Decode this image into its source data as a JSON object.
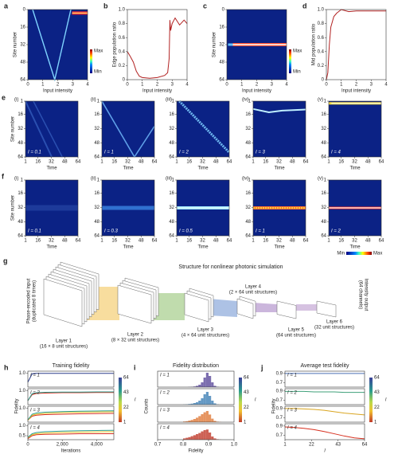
{
  "chart_data": [
    {
      "type": "heatmap",
      "panel": "a",
      "xlabel": "Input intensity",
      "ylabel": "Site number",
      "xlim": [
        0,
        4
      ],
      "xticks": [
        0,
        1,
        2,
        3,
        4
      ],
      "ylim": [
        64,
        0
      ],
      "yticks": [
        0,
        16,
        32,
        48,
        64
      ],
      "colorbar": [
        "Max",
        "Min"
      ]
    },
    {
      "type": "line",
      "panel": "b",
      "xlabel": "Input intensity",
      "ylabel": "Edge population ratio",
      "xlim": [
        0,
        4
      ],
      "xticks": [
        0,
        1,
        2,
        3,
        4
      ],
      "ylim": [
        0,
        1
      ],
      "yticks": [
        0,
        0.2,
        0.4,
        0.6,
        0.8,
        {
          "value": 1,
          "label": "1.0"
        }
      ],
      "x": [
        0,
        0.2,
        0.4,
        0.6,
        0.8,
        1.0,
        1.5,
        2,
        2.5,
        2.7,
        2.8,
        2.85,
        2.9,
        3,
        3.2,
        3.5,
        3.8,
        4
      ],
      "series": [
        {
          "color": "#b22222",
          "values": [
            0.4,
            0.33,
            0.25,
            0.12,
            0.05,
            0.03,
            0.02,
            0.03,
            0.06,
            0.1,
            0.3,
            0.85,
            0.7,
            0.8,
            0.88,
            0.78,
            0.85,
            0.8
          ]
        }
      ]
    },
    {
      "type": "heatmap",
      "panel": "c",
      "xlabel": "Input intensity",
      "ylabel": "Site number",
      "xlim": [
        0,
        4
      ],
      "xticks": [
        0,
        1,
        2,
        3,
        4
      ],
      "ylim": [
        64,
        0
      ],
      "yticks": [
        0,
        16,
        32,
        48,
        64
      ],
      "colorbar": [
        "Max",
        "Min"
      ]
    },
    {
      "type": "line",
      "panel": "d",
      "xlabel": "Input intensity",
      "ylabel": "Mid population ratio",
      "xlim": [
        0,
        4
      ],
      "xticks": [
        0,
        1,
        2,
        3,
        4
      ],
      "ylim": [
        0,
        1
      ],
      "yticks": [
        0,
        0.2,
        0.4,
        0.6,
        0.8,
        {
          "value": 1,
          "label": "1.0"
        }
      ],
      "x": [
        0,
        0.1,
        0.2,
        0.3,
        0.5,
        0.7,
        1,
        1.5,
        2,
        3,
        4
      ],
      "series": [
        {
          "color": "#b22222",
          "values": [
            0,
            0.1,
            0.5,
            0.75,
            0.9,
            0.95,
            1.0,
            0.97,
            0.98,
            0.98,
            0.98
          ]
        }
      ]
    },
    {
      "type": "heatmap",
      "panel": "e",
      "subpanel": "(i)",
      "annotation": "I = 0.1",
      "xlabel": "Time",
      "ylabel": "Site number",
      "xlim": [
        1,
        64
      ],
      "xticks": [
        1,
        16,
        32,
        48,
        64
      ],
      "ylim": [
        64,
        1
      ],
      "yticks": [
        1,
        16,
        32,
        48,
        64
      ]
    },
    {
      "type": "heatmap",
      "subpanel": "(ii)",
      "annotation": "I = 1",
      "xlabel": "Time",
      "xlim": [
        1,
        64
      ],
      "xticks": [
        1,
        16,
        32,
        48,
        64
      ],
      "ylim": [
        64,
        1
      ],
      "yticks": [
        1,
        16,
        32,
        48,
        64
      ]
    },
    {
      "type": "heatmap",
      "subpanel": "(iii)",
      "annotation": "I = 2",
      "xlabel": "Time",
      "xlim": [
        1,
        64
      ],
      "xticks": [
        1,
        16,
        32,
        48,
        64
      ],
      "ylim": [
        64,
        1
      ],
      "yticks": [
        1,
        16,
        32,
        48,
        64
      ]
    },
    {
      "type": "heatmap",
      "subpanel": "(iv)",
      "annotation": "I = 3",
      "xlabel": "Time",
      "xlim": [
        1,
        64
      ],
      "xticks": [
        1,
        16,
        32,
        48,
        64
      ],
      "ylim": [
        64,
        1
      ],
      "yticks": [
        1,
        16,
        32,
        48,
        64
      ]
    },
    {
      "type": "heatmap",
      "subpanel": "(v)",
      "annotation": "I = 4",
      "xlabel": "Time",
      "xlim": [
        1,
        64
      ],
      "xticks": [
        1,
        16,
        32,
        48,
        64
      ],
      "ylim": [
        64,
        1
      ],
      "yticks": [
        1,
        16,
        32,
        48,
        64
      ]
    },
    {
      "type": "heatmap",
      "panel": "f",
      "subpanel": "(i)",
      "annotation": "I = 0.1",
      "xlabel": "Time",
      "ylabel": "Site number",
      "xlim": [
        1,
        64
      ],
      "xticks": [
        1,
        16,
        32,
        48,
        64
      ],
      "ylim": [
        64,
        1
      ],
      "yticks": [
        1,
        16,
        32,
        48,
        64
      ]
    },
    {
      "type": "heatmap",
      "subpanel": "(ii)",
      "annotation": "I = 0.3",
      "xlabel": "Time",
      "xlim": [
        1,
        64
      ],
      "xticks": [
        1,
        16,
        32,
        48,
        64
      ],
      "ylim": [
        64,
        1
      ],
      "yticks": [
        1,
        16,
        32,
        48,
        64
      ]
    },
    {
      "type": "heatmap",
      "subpanel": "(iii)",
      "annotation": "I = 0.5",
      "xlabel": "Time",
      "xlim": [
        1,
        64
      ],
      "xticks": [
        1,
        16,
        32,
        48,
        64
      ],
      "ylim": [
        64,
        1
      ],
      "yticks": [
        1,
        16,
        32,
        48,
        64
      ]
    },
    {
      "type": "heatmap",
      "subpanel": "(iv)",
      "annotation": "I = 1",
      "xlabel": "Time",
      "xlim": [
        1,
        64
      ],
      "xticks": [
        1,
        16,
        32,
        48,
        64
      ],
      "ylim": [
        64,
        1
      ],
      "yticks": [
        1,
        16,
        32,
        48,
        64
      ]
    },
    {
      "type": "heatmap",
      "subpanel": "(v)",
      "annotation": "I = 2",
      "xlabel": "Time",
      "xlim": [
        1,
        64
      ],
      "xticks": [
        1,
        16,
        32,
        48,
        64
      ],
      "ylim": [
        64,
        1
      ],
      "yticks": [
        1,
        16,
        32,
        48,
        64
      ],
      "colorbar": [
        "Min",
        "Max"
      ]
    },
    {
      "type": "line",
      "panel": "h",
      "title": "Training fidelity",
      "ylabel": "Fidelity",
      "annotation": "I = 1",
      "xlim": [
        0,
        5000
      ],
      "ylim": [
        0.3,
        1.1
      ],
      "yticks": [
        {
          "value": 1,
          "label": "1.0"
        }
      ],
      "x": [
        0,
        250,
        500,
        1000,
        2000,
        3000,
        4000,
        5000
      ],
      "series": [
        {
          "color": "#2c3e8c",
          "values": [
            0.55,
            0.97,
            0.99,
            0.99,
            0.99,
            0.99,
            0.99,
            0.99
          ]
        }
      ],
      "colorbar": {
        "ticks": [
          64,
          43,
          22,
          1
        ],
        "label": "l"
      }
    },
    {
      "type": "line",
      "annotation": "I = 2",
      "xlim": [
        0,
        5000
      ],
      "ylim": [
        0.3,
        1.1
      ],
      "yticks": [
        {
          "value": 1,
          "label": "1.0"
        }
      ],
      "x": [
        0,
        250,
        500,
        1000,
        2000,
        3000,
        4000,
        5000
      ],
      "series": [
        {
          "color": "#d7301f",
          "values": [
            0.5,
            0.8,
            0.86,
            0.88,
            0.9,
            0.9,
            0.91,
            0.91
          ]
        },
        {
          "color": "#2a9d8f",
          "values": [
            0.5,
            0.85,
            0.9,
            0.92,
            0.93,
            0.93,
            0.94,
            0.94
          ]
        }
      ]
    },
    {
      "type": "line",
      "annotation": "I = 3",
      "xlim": [
        0,
        5000
      ],
      "ylim": [
        0.3,
        1.1
      ],
      "yticks": [
        {
          "value": 1,
          "label": "1.0"
        }
      ],
      "x": [
        0,
        250,
        500,
        1000,
        2000,
        3000,
        4000,
        5000
      ],
      "series": [
        {
          "color": "#d7301f",
          "values": [
            0.4,
            0.6,
            0.65,
            0.68,
            0.7,
            0.72,
            0.73,
            0.74
          ]
        },
        {
          "color": "#e6c229",
          "values": [
            0.4,
            0.65,
            0.7,
            0.74,
            0.78,
            0.8,
            0.81,
            0.82
          ]
        },
        {
          "color": "#2a9d8f",
          "values": [
            0.42,
            0.7,
            0.76,
            0.8,
            0.83,
            0.85,
            0.86,
            0.87
          ]
        }
      ]
    },
    {
      "type": "line",
      "annotation": "I = 4",
      "xlabel": "Iterations",
      "xlim": [
        0,
        5000
      ],
      "xticks": [
        0,
        {
          "value": 2000,
          "label": "2,000"
        },
        {
          "value": 4000,
          "label": "4,000"
        }
      ],
      "ylim": [
        0.3,
        1.1
      ],
      "yticks": [
        {
          "value": 1,
          "label": "1.0"
        },
        0.5
      ],
      "x": [
        0,
        250,
        500,
        1000,
        2000,
        3000,
        4000,
        5000
      ],
      "series": [
        {
          "color": "#d7301f",
          "values": [
            0.35,
            0.5,
            0.55,
            0.57,
            0.58,
            0.6,
            0.6,
            0.6
          ]
        },
        {
          "color": "#e6c229",
          "values": [
            0.4,
            0.55,
            0.6,
            0.63,
            0.66,
            0.68,
            0.69,
            0.7
          ]
        },
        {
          "color": "#2a9d8f",
          "values": [
            0.42,
            0.6,
            0.66,
            0.7,
            0.73,
            0.75,
            0.76,
            0.77
          ]
        }
      ]
    },
    {
      "type": "histogram",
      "panel": "i",
      "title": "Fidelity distribution",
      "ylabel": "Counts",
      "annotation": "I = 1",
      "xlim": [
        0.7,
        1.0
      ],
      "ylim": [
        0,
        100
      ],
      "bins": [
        0.8,
        0.81,
        0.82,
        0.83,
        0.84,
        0.85,
        0.86,
        0.87,
        0.88,
        0.89,
        0.9,
        0.91,
        0.92,
        0.93,
        0.94,
        0.95,
        0.96
      ],
      "counts": [
        0,
        0,
        1,
        2,
        4,
        8,
        15,
        30,
        60,
        90,
        70,
        30,
        8,
        2,
        0,
        0
      ],
      "color": "#5b4a9b",
      "colorbar": {
        "ticks": [
          64,
          43,
          22,
          1
        ],
        "label": "l"
      }
    },
    {
      "type": "histogram",
      "annotation": "I = 2",
      "xlim": [
        0.7,
        1.0
      ],
      "ylim": [
        0,
        100
      ],
      "bins": [
        0.8,
        0.81,
        0.82,
        0.83,
        0.84,
        0.85,
        0.86,
        0.87,
        0.88,
        0.89,
        0.9,
        0.91,
        0.92,
        0.93,
        0.94,
        0.95,
        0.96
      ],
      "counts": [
        1,
        2,
        4,
        6,
        10,
        15,
        25,
        40,
        65,
        80,
        55,
        25,
        8,
        2,
        0,
        0
      ],
      "color": "#3f7fb5"
    },
    {
      "type": "histogram",
      "annotation": "I = 3",
      "xlim": [
        0.7,
        1.0
      ],
      "ylim": [
        0,
        100
      ],
      "bins": [
        0.8,
        0.81,
        0.82,
        0.83,
        0.84,
        0.85,
        0.86,
        0.87,
        0.88,
        0.89,
        0.9,
        0.91,
        0.92,
        0.93,
        0.94,
        0.95,
        0.96
      ],
      "counts": [
        4,
        6,
        10,
        14,
        20,
        28,
        38,
        50,
        62,
        70,
        48,
        22,
        8,
        3,
        1,
        0
      ],
      "color": "#e07b39"
    },
    {
      "type": "histogram",
      "annotation": "I = 4",
      "xlabel": "Fidelity",
      "xlim": [
        0.7,
        1.0
      ],
      "xticks": [
        0.7,
        0.8,
        0.9,
        {
          "value": 1,
          "label": "1.0"
        }
      ],
      "ylim": [
        0,
        100
      ],
      "bins": [
        0.8,
        0.81,
        0.82,
        0.83,
        0.84,
        0.85,
        0.86,
        0.87,
        0.88,
        0.89,
        0.9,
        0.91,
        0.92,
        0.93,
        0.94,
        0.95,
        0.96
      ],
      "counts": [
        8,
        12,
        16,
        22,
        28,
        35,
        42,
        52,
        60,
        64,
        45,
        20,
        8,
        3,
        1,
        0
      ],
      "color": "#c0392b"
    },
    {
      "type": "line",
      "panel": "j",
      "title": "Average test fidelity",
      "ylabel": "Fidelity",
      "annotation": "I = 1",
      "xlim": [
        1,
        64
      ],
      "ylim": [
        0.6,
        0.95
      ],
      "yticks": [
        0.7,
        0.9
      ],
      "x": [
        1,
        8,
        16,
        24,
        32,
        40,
        48,
        56,
        64
      ],
      "series": [
        {
          "color": "#4a6fb5",
          "values": [
            0.9,
            0.9,
            0.9,
            0.9,
            0.9,
            0.9,
            0.9,
            0.9,
            0.9
          ]
        }
      ],
      "colorbar": {
        "ticks": [
          64,
          43,
          22,
          1
        ],
        "label": "l"
      }
    },
    {
      "type": "line",
      "annotation": "I = 2",
      "xlim": [
        1,
        64
      ],
      "ylim": [
        0.6,
        0.95
      ],
      "yticks": [
        0.7,
        0.9
      ],
      "x": [
        1,
        8,
        16,
        24,
        32,
        40,
        48,
        56,
        64
      ],
      "series": [
        {
          "color": "#3fa07a",
          "values": [
            0.89,
            0.89,
            0.89,
            0.88,
            0.88,
            0.88,
            0.87,
            0.87,
            0.87
          ]
        }
      ]
    },
    {
      "type": "line",
      "annotation": "I = 3",
      "xlim": [
        1,
        64
      ],
      "ylim": [
        0.6,
        0.95
      ],
      "yticks": [
        0.7,
        0.9
      ],
      "x": [
        1,
        8,
        16,
        24,
        32,
        40,
        48,
        56,
        64
      ],
      "series": [
        {
          "color": "#d9a520",
          "values": [
            0.9,
            0.9,
            0.89,
            0.88,
            0.86,
            0.83,
            0.8,
            0.78,
            0.76
          ]
        }
      ]
    },
    {
      "type": "line",
      "annotation": "I = 4",
      "xlabel": "l",
      "xlim": [
        1,
        64
      ],
      "xticks": [
        1,
        22,
        43,
        64
      ],
      "ylim": [
        0.6,
        0.95
      ],
      "yticks": [
        0.7,
        0.9
      ],
      "x": [
        1,
        8,
        16,
        24,
        32,
        40,
        48,
        56,
        64
      ],
      "series": [
        {
          "color": "#d7301f",
          "values": [
            0.88,
            0.87,
            0.85,
            0.82,
            0.78,
            0.73,
            0.68,
            0.64,
            0.62
          ]
        }
      ]
    }
  ],
  "diagram": {
    "panel": "g",
    "title": "Structure for nonlinear photonic simulation",
    "input": [
      "Phase-encoded input",
      "(duplicated 8 times)"
    ],
    "layers": [
      {
        "name": "Layer 1",
        "size": "(16 × 8 unit structures)"
      },
      {
        "name": "Layer 2",
        "size": "(8 × 32 unit structures)"
      },
      {
        "name": "Layer 3",
        "size": "(4 × 64 unit structures)"
      },
      {
        "name": "Layer 4",
        "size": "(2 × 64 unit structures)"
      },
      {
        "name": "Layer 5",
        "size": "(64 unit structures)"
      },
      {
        "name": "Layer 6",
        "size": "(32 unit structures)"
      }
    ],
    "output": [
      "Intensity output",
      "(64 channels)"
    ]
  }
}
